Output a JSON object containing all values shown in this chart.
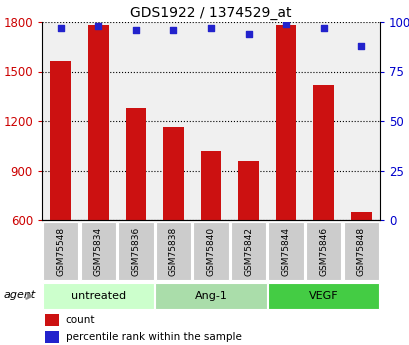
{
  "title": "GDS1922 / 1374529_at",
  "categories": [
    "GSM75548",
    "GSM75834",
    "GSM75836",
    "GSM75838",
    "GSM75840",
    "GSM75842",
    "GSM75844",
    "GSM75846",
    "GSM75848"
  ],
  "groups": [
    {
      "label": "untreated",
      "indices": [
        0,
        1,
        2
      ],
      "color": "#ccffcc"
    },
    {
      "label": "Ang-1",
      "indices": [
        3,
        4,
        5
      ],
      "color": "#aaddaa"
    },
    {
      "label": "VEGF",
      "indices": [
        6,
        7,
        8
      ],
      "color": "#44cc44"
    }
  ],
  "count_values": [
    1565,
    1780,
    1280,
    1165,
    1020,
    960,
    1780,
    1420,
    650
  ],
  "percentile_values": [
    97,
    98,
    96,
    96,
    97,
    94,
    99,
    97,
    88
  ],
  "ylim_left": [
    600,
    1800
  ],
  "ylim_right": [
    0,
    100
  ],
  "yticks_left": [
    600,
    900,
    1200,
    1500,
    1800
  ],
  "yticks_right": [
    0,
    25,
    50,
    75,
    100
  ],
  "ytick_labels_right": [
    "0",
    "25",
    "50",
    "75",
    "100%"
  ],
  "bar_color": "#cc1111",
  "dot_color": "#2222cc",
  "bg_color": "#ffffff",
  "plot_bg": "#f0f0f0",
  "ticklabel_bg": "#cccccc",
  "agent_label": "agent",
  "legend_count": "count",
  "legend_percentile": "percentile rank within the sample",
  "left_tick_color": "#cc0000",
  "right_tick_color": "#0000cc"
}
